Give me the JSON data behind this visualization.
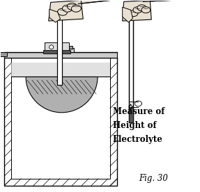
{
  "fig_label": "Fig. 30",
  "annotation_lines": [
    "Measure of",
    "Height of",
    "Electrolyte"
  ],
  "background_color": "#ffffff",
  "figsize": [
    2.87,
    2.76
  ],
  "dpi": 100,
  "text_color": "#000000",
  "fig_label_fontsize": 8.5,
  "annotation_fontsize": 8.5,
  "line_color": "#000000",
  "gray_light": "#cccccc",
  "gray_mid": "#999999",
  "gray_dark": "#555555",
  "skin": "#e8e0d0"
}
